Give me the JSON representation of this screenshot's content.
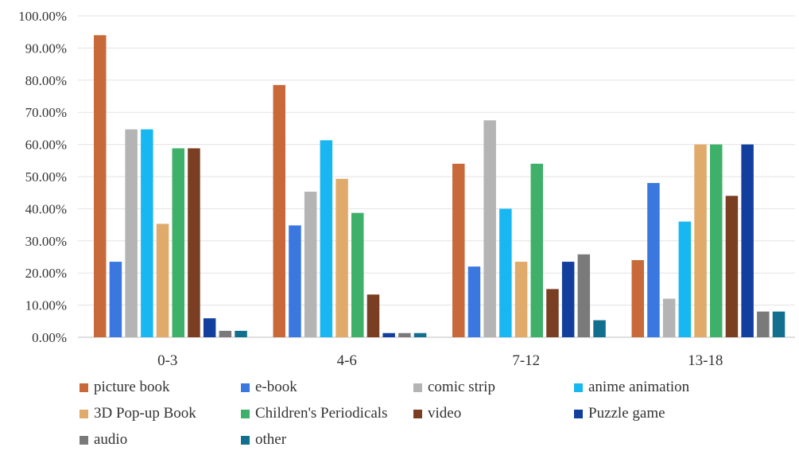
{
  "chart_data": {
    "type": "bar",
    "categories": [
      "0-3",
      "4-6",
      "7-12",
      "13-18"
    ],
    "ylim": [
      0,
      100
    ],
    "yticks": [
      "0.00%",
      "10.00%",
      "20.00%",
      "30.00%",
      "40.00%",
      "50.00%",
      "60.00%",
      "70.00%",
      "80.00%",
      "90.00%",
      "100.00%"
    ],
    "grid": true,
    "legend_position": "bottom",
    "series": [
      {
        "name": "picture book",
        "color": "#C8693A",
        "values": [
          94.0,
          78.5,
          54.0,
          24.0
        ]
      },
      {
        "name": "e-book",
        "color": "#3A78E0",
        "values": [
          23.5,
          34.8,
          22.0,
          48.0
        ]
      },
      {
        "name": "comic strip",
        "color": "#B4B4B4",
        "values": [
          64.7,
          45.3,
          67.5,
          12.0
        ]
      },
      {
        "name": "anime animation",
        "color": "#19B7F2",
        "values": [
          64.7,
          61.3,
          40.0,
          36.0
        ]
      },
      {
        "name": "3D Pop-up Book",
        "color": "#E0AA6A",
        "values": [
          35.3,
          49.3,
          23.5,
          60.0
        ]
      },
      {
        "name": "Children's Periodicals",
        "color": "#3EB06A",
        "values": [
          58.8,
          38.7,
          54.0,
          60.0
        ]
      },
      {
        "name": "video",
        "color": "#7A3E22",
        "values": [
          58.8,
          13.3,
          15.0,
          44.0
        ]
      },
      {
        "name": "Puzzle game",
        "color": "#123F9E",
        "values": [
          5.9,
          1.3,
          23.5,
          60.0
        ]
      },
      {
        "name": "audio",
        "color": "#7A7A7A",
        "values": [
          2.0,
          1.3,
          25.8,
          8.0
        ]
      },
      {
        "name": "other",
        "color": "#12708E",
        "values": [
          2.0,
          1.3,
          5.3,
          8.0
        ]
      }
    ]
  }
}
